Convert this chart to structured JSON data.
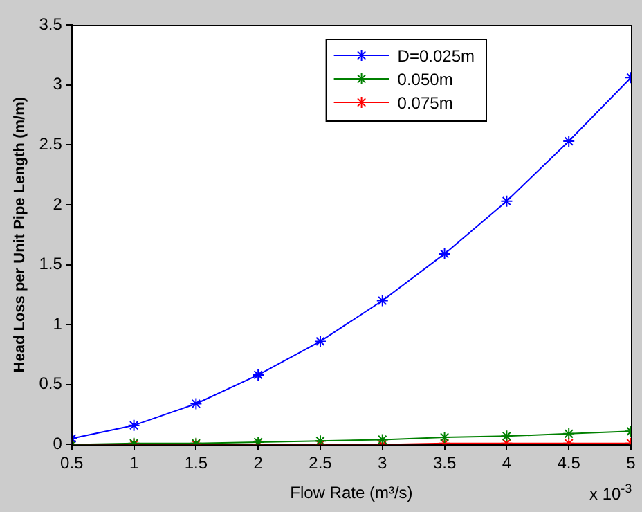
{
  "chart_data": {
    "type": "line",
    "xlabel": "Flow Rate (m³/s)",
    "ylabel": "Head Loss per Unit Pipe Length (m/m)",
    "x": [
      0.5,
      1,
      1.5,
      2,
      2.5,
      3,
      3.5,
      4,
      4.5,
      5
    ],
    "series": [
      {
        "name": "D=0.025m",
        "color": "#0000ff",
        "values": [
          0.05,
          0.16,
          0.34,
          0.58,
          0.86,
          1.2,
          1.59,
          2.03,
          2.53,
          3.06
        ]
      },
      {
        "name": "0.050m",
        "color": "#008000",
        "values": [
          0,
          0.01,
          0.01,
          0.02,
          0.03,
          0.04,
          0.06,
          0.07,
          0.09,
          0.11
        ]
      },
      {
        "name": "0.075m",
        "color": "#ff0000",
        "values": [
          0,
          0,
          0,
          0,
          0,
          0,
          0.01,
          0.01,
          0.01,
          0.01
        ]
      }
    ],
    "xlim": [
      0.5,
      5
    ],
    "xticks": [
      0.5,
      1,
      1.5,
      2,
      2.5,
      3,
      3.5,
      4,
      4.5,
      5
    ],
    "ylim": [
      0,
      3.5
    ],
    "yticks": [
      0,
      0.5,
      1,
      1.5,
      2,
      2.5,
      3,
      3.5
    ],
    "annotations": [
      "x 10$^{-3}$"
    ],
    "grid": false,
    "legend": "top right",
    "marker": "cross",
    "line_style": "solid"
  }
}
